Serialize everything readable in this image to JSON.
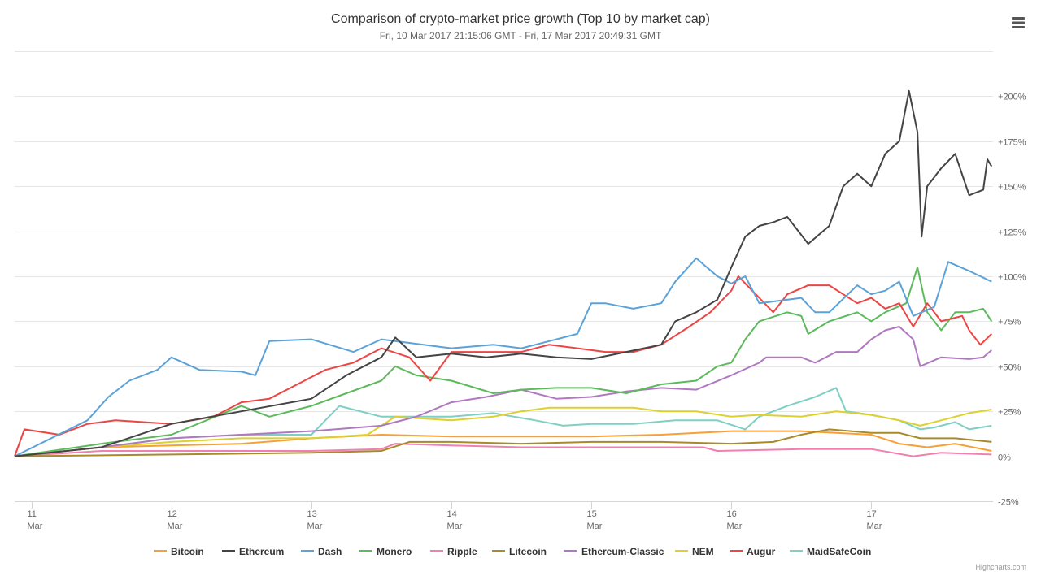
{
  "chart_data": {
    "type": "line",
    "title": "Comparison of crypto-market price growth (Top 10 by market cap)",
    "subtitle": "Fri, 10 Mar 2017 21:15:06 GMT - Fri, 17 Mar 2017 20:49:31 GMT",
    "xlabel": "",
    "ylabel": "",
    "x_unit": "day of March 2017",
    "xlim": [
      10.88,
      17.87
    ],
    "ylim": [
      -25,
      225
    ],
    "y_ticks": [
      -25,
      0,
      25,
      50,
      75,
      100,
      125,
      150,
      175,
      200,
      225
    ],
    "y_tick_labels": [
      "-25%",
      "0%",
      "+25%",
      "+50%",
      "+75%",
      "+100%",
      "+125%",
      "+150%",
      "+175%",
      "+200%",
      ""
    ],
    "x_ticks": [
      11,
      12,
      13,
      14,
      15,
      16,
      17
    ],
    "x_tick_labels": [
      [
        "11",
        "Mar"
      ],
      [
        "12",
        "Mar"
      ],
      [
        "13",
        "Mar"
      ],
      [
        "14",
        "Mar"
      ],
      [
        "15",
        "Mar"
      ],
      [
        "16",
        "Mar"
      ],
      [
        "17",
        "Mar"
      ]
    ],
    "grid": true,
    "legend_position": "bottom",
    "series": [
      {
        "name": "Bitcoin",
        "color": "#f7a035",
        "points": [
          [
            10.88,
            0
          ],
          [
            11.5,
            5
          ],
          [
            12,
            6
          ],
          [
            12.5,
            7
          ],
          [
            13,
            10
          ],
          [
            13.5,
            12
          ],
          [
            14,
            11
          ],
          [
            14.5,
            11
          ],
          [
            15,
            11
          ],
          [
            15.5,
            12
          ],
          [
            16,
            14
          ],
          [
            16.5,
            14
          ],
          [
            16.75,
            13
          ],
          [
            17,
            12
          ],
          [
            17.2,
            7
          ],
          [
            17.4,
            5
          ],
          [
            17.6,
            7
          ],
          [
            17.86,
            3
          ]
        ]
      },
      {
        "name": "Ripple",
        "color": "#f080b0",
        "points": [
          [
            10.88,
            0
          ],
          [
            11.5,
            3
          ],
          [
            12,
            3
          ],
          [
            12.5,
            3
          ],
          [
            13,
            3
          ],
          [
            13.5,
            4
          ],
          [
            13.6,
            7
          ],
          [
            14,
            6
          ],
          [
            14.5,
            5
          ],
          [
            15,
            5
          ],
          [
            15.5,
            5
          ],
          [
            15.8,
            5
          ],
          [
            15.9,
            3
          ],
          [
            16.5,
            4
          ],
          [
            17,
            4
          ],
          [
            17.3,
            0
          ],
          [
            17.5,
            2
          ],
          [
            17.86,
            1
          ]
        ]
      },
      {
        "name": "Litecoin",
        "color": "#a88a2a",
        "points": [
          [
            10.88,
            0
          ],
          [
            12,
            1
          ],
          [
            13,
            2
          ],
          [
            13.5,
            3
          ],
          [
            13.7,
            8
          ],
          [
            14,
            8
          ],
          [
            14.5,
            7
          ],
          [
            15,
            8
          ],
          [
            15.5,
            8
          ],
          [
            16,
            7
          ],
          [
            16.3,
            8
          ],
          [
            16.5,
            12
          ],
          [
            16.7,
            15
          ],
          [
            17,
            13
          ],
          [
            17.2,
            13
          ],
          [
            17.35,
            10
          ],
          [
            17.6,
            10
          ],
          [
            17.86,
            8
          ]
        ]
      },
      {
        "name": "MaidSafeCoin",
        "color": "#7fcfc4",
        "points": [
          [
            10.88,
            0
          ],
          [
            11.5,
            5
          ],
          [
            12,
            10
          ],
          [
            12.5,
            12
          ],
          [
            13,
            12
          ],
          [
            13.2,
            28
          ],
          [
            13.5,
            22
          ],
          [
            14,
            22
          ],
          [
            14.3,
            24
          ],
          [
            14.6,
            20
          ],
          [
            14.8,
            17
          ],
          [
            15,
            18
          ],
          [
            15.3,
            18
          ],
          [
            15.6,
            20
          ],
          [
            15.9,
            20
          ],
          [
            16.1,
            15
          ],
          [
            16.2,
            22
          ],
          [
            16.4,
            28
          ],
          [
            16.6,
            33
          ],
          [
            16.75,
            38
          ],
          [
            16.82,
            25
          ],
          [
            17,
            23
          ],
          [
            17.2,
            20
          ],
          [
            17.35,
            15
          ],
          [
            17.45,
            16
          ],
          [
            17.6,
            19
          ],
          [
            17.7,
            15
          ],
          [
            17.86,
            17
          ]
        ]
      },
      {
        "name": "NEM",
        "color": "#dcd12e",
        "points": [
          [
            10.88,
            0
          ],
          [
            11.5,
            5
          ],
          [
            12,
            8
          ],
          [
            12.5,
            10
          ],
          [
            13,
            10
          ],
          [
            13.4,
            12
          ],
          [
            13.6,
            22
          ],
          [
            14,
            20
          ],
          [
            14.3,
            22
          ],
          [
            14.5,
            25
          ],
          [
            14.7,
            27
          ],
          [
            15,
            27
          ],
          [
            15.3,
            27
          ],
          [
            15.5,
            25
          ],
          [
            15.75,
            25
          ],
          [
            16,
            22
          ],
          [
            16.2,
            23
          ],
          [
            16.5,
            22
          ],
          [
            16.75,
            25
          ],
          [
            17,
            23
          ],
          [
            17.2,
            20
          ],
          [
            17.35,
            17
          ],
          [
            17.5,
            20
          ],
          [
            17.7,
            24
          ],
          [
            17.86,
            26
          ]
        ]
      },
      {
        "name": "Ethereum-Classic",
        "color": "#b078c0",
        "points": [
          [
            10.88,
            0
          ],
          [
            11.5,
            5
          ],
          [
            12,
            10
          ],
          [
            12.5,
            12
          ],
          [
            13,
            14
          ],
          [
            13.5,
            17
          ],
          [
            13.75,
            22
          ],
          [
            14,
            30
          ],
          [
            14.25,
            33
          ],
          [
            14.5,
            37
          ],
          [
            14.75,
            32
          ],
          [
            15,
            33
          ],
          [
            15.25,
            36
          ],
          [
            15.5,
            38
          ],
          [
            15.75,
            37
          ],
          [
            16,
            45
          ],
          [
            16.2,
            52
          ],
          [
            16.25,
            55
          ],
          [
            16.5,
            55
          ],
          [
            16.6,
            52
          ],
          [
            16.75,
            58
          ],
          [
            16.9,
            58
          ],
          [
            17,
            65
          ],
          [
            17.1,
            70
          ],
          [
            17.2,
            72
          ],
          [
            17.3,
            65
          ],
          [
            17.35,
            50
          ],
          [
            17.5,
            55
          ],
          [
            17.7,
            54
          ],
          [
            17.8,
            55
          ],
          [
            17.86,
            59
          ]
        ]
      },
      {
        "name": "Monero",
        "color": "#5cba5c",
        "points": [
          [
            10.88,
            0
          ],
          [
            11.5,
            7
          ],
          [
            12,
            12
          ],
          [
            12.5,
            28
          ],
          [
            12.7,
            22
          ],
          [
            13,
            28
          ],
          [
            13.25,
            35
          ],
          [
            13.5,
            42
          ],
          [
            13.6,
            50
          ],
          [
            13.75,
            45
          ],
          [
            14,
            42
          ],
          [
            14.3,
            35
          ],
          [
            14.5,
            37
          ],
          [
            14.75,
            38
          ],
          [
            15,
            38
          ],
          [
            15.25,
            35
          ],
          [
            15.5,
            40
          ],
          [
            15.75,
            42
          ],
          [
            15.9,
            50
          ],
          [
            16,
            52
          ],
          [
            16.1,
            65
          ],
          [
            16.2,
            75
          ],
          [
            16.4,
            80
          ],
          [
            16.5,
            78
          ],
          [
            16.55,
            68
          ],
          [
            16.7,
            75
          ],
          [
            16.9,
            80
          ],
          [
            17,
            75
          ],
          [
            17.1,
            80
          ],
          [
            17.25,
            85
          ],
          [
            17.33,
            105
          ],
          [
            17.4,
            80
          ],
          [
            17.5,
            70
          ],
          [
            17.6,
            80
          ],
          [
            17.7,
            80
          ],
          [
            17.8,
            82
          ],
          [
            17.86,
            75
          ]
        ]
      },
      {
        "name": "Augur",
        "color": "#ee4444",
        "points": [
          [
            10.88,
            0
          ],
          [
            10.95,
            15
          ],
          [
            11.2,
            12
          ],
          [
            11.4,
            18
          ],
          [
            11.6,
            20
          ],
          [
            12,
            18
          ],
          [
            12.3,
            22
          ],
          [
            12.5,
            30
          ],
          [
            12.7,
            32
          ],
          [
            12.9,
            40
          ],
          [
            13.1,
            48
          ],
          [
            13.3,
            52
          ],
          [
            13.5,
            60
          ],
          [
            13.7,
            55
          ],
          [
            13.85,
            42
          ],
          [
            14,
            58
          ],
          [
            14.3,
            58
          ],
          [
            14.5,
            58
          ],
          [
            14.7,
            62
          ],
          [
            14.9,
            60
          ],
          [
            15.1,
            58
          ],
          [
            15.3,
            58
          ],
          [
            15.5,
            62
          ],
          [
            15.7,
            72
          ],
          [
            15.85,
            80
          ],
          [
            16,
            92
          ],
          [
            16.05,
            100
          ],
          [
            16.2,
            88
          ],
          [
            16.3,
            80
          ],
          [
            16.4,
            90
          ],
          [
            16.55,
            95
          ],
          [
            16.7,
            95
          ],
          [
            16.8,
            90
          ],
          [
            16.9,
            85
          ],
          [
            17,
            88
          ],
          [
            17.1,
            82
          ],
          [
            17.2,
            85
          ],
          [
            17.3,
            72
          ],
          [
            17.4,
            85
          ],
          [
            17.5,
            75
          ],
          [
            17.65,
            78
          ],
          [
            17.7,
            70
          ],
          [
            17.78,
            62
          ],
          [
            17.86,
            68
          ]
        ]
      },
      {
        "name": "Dash",
        "color": "#5aa2d8",
        "points": [
          [
            10.88,
            0
          ],
          [
            11.4,
            20
          ],
          [
            11.55,
            33
          ],
          [
            11.7,
            42
          ],
          [
            11.9,
            48
          ],
          [
            12,
            55
          ],
          [
            12.2,
            48
          ],
          [
            12.5,
            47
          ],
          [
            12.6,
            45
          ],
          [
            12.7,
            64
          ],
          [
            13,
            65
          ],
          [
            13.3,
            58
          ],
          [
            13.5,
            65
          ],
          [
            13.7,
            63
          ],
          [
            14,
            60
          ],
          [
            14.3,
            62
          ],
          [
            14.5,
            60
          ],
          [
            14.7,
            64
          ],
          [
            14.9,
            68
          ],
          [
            15,
            85
          ],
          [
            15.1,
            85
          ],
          [
            15.3,
            82
          ],
          [
            15.5,
            85
          ],
          [
            15.6,
            97
          ],
          [
            15.75,
            110
          ],
          [
            15.9,
            100
          ],
          [
            16,
            96
          ],
          [
            16.1,
            100
          ],
          [
            16.2,
            85
          ],
          [
            16.5,
            88
          ],
          [
            16.6,
            80
          ],
          [
            16.7,
            80
          ],
          [
            16.9,
            95
          ],
          [
            17,
            90
          ],
          [
            17.1,
            92
          ],
          [
            17.2,
            97
          ],
          [
            17.3,
            78
          ],
          [
            17.45,
            83
          ],
          [
            17.55,
            108
          ],
          [
            17.7,
            103
          ],
          [
            17.86,
            97
          ]
        ]
      },
      {
        "name": "Ethereum",
        "color": "#444444",
        "points": [
          [
            10.88,
            0
          ],
          [
            11.5,
            5
          ],
          [
            12,
            18
          ],
          [
            12.5,
            25
          ],
          [
            13,
            32
          ],
          [
            13.25,
            45
          ],
          [
            13.5,
            55
          ],
          [
            13.6,
            66
          ],
          [
            13.75,
            55
          ],
          [
            14,
            57
          ],
          [
            14.25,
            55
          ],
          [
            14.5,
            57
          ],
          [
            14.75,
            55
          ],
          [
            15,
            54
          ],
          [
            15.25,
            58
          ],
          [
            15.5,
            62
          ],
          [
            15.6,
            75
          ],
          [
            15.75,
            80
          ],
          [
            15.9,
            87
          ],
          [
            16,
            105
          ],
          [
            16.1,
            122
          ],
          [
            16.2,
            128
          ],
          [
            16.3,
            130
          ],
          [
            16.4,
            133
          ],
          [
            16.55,
            118
          ],
          [
            16.7,
            128
          ],
          [
            16.8,
            150
          ],
          [
            16.9,
            157
          ],
          [
            17,
            150
          ],
          [
            17.1,
            168
          ],
          [
            17.2,
            175
          ],
          [
            17.27,
            203
          ],
          [
            17.33,
            180
          ],
          [
            17.36,
            122
          ],
          [
            17.4,
            150
          ],
          [
            17.5,
            160
          ],
          [
            17.6,
            168
          ],
          [
            17.7,
            145
          ],
          [
            17.8,
            148
          ],
          [
            17.83,
            165
          ],
          [
            17.86,
            161
          ]
        ]
      }
    ],
    "legend_order": [
      "Bitcoin",
      "Ethereum",
      "Dash",
      "Monero",
      "Ripple",
      "Litecoin",
      "Ethereum-Classic",
      "NEM",
      "Augur",
      "MaidSafeCoin"
    ]
  },
  "credits": "Highcharts.com",
  "menu_icon": "hamburger-menu-icon"
}
